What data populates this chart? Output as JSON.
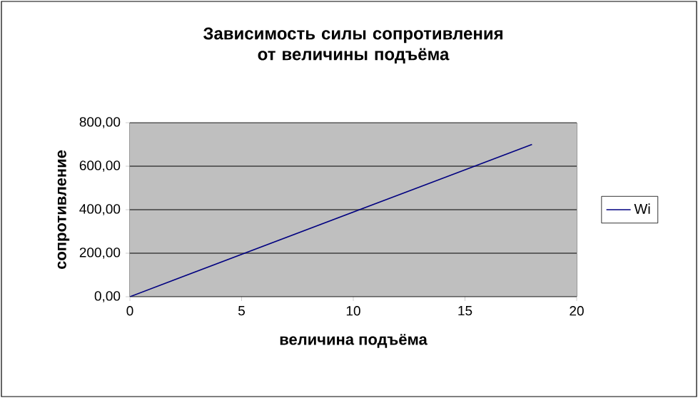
{
  "chart_data": {
    "type": "line",
    "title": "Зависимость силы сопротивления от величины подъёма",
    "xlabel": "величина подъёма",
    "ylabel": "сопротивление",
    "x": [
      0,
      18
    ],
    "series": [
      {
        "name": "Wi",
        "color": "#000080",
        "values": [
          0,
          700
        ]
      }
    ],
    "xlim": [
      0,
      20
    ],
    "xticks": [
      0,
      5,
      10,
      15,
      20
    ],
    "ylim": [
      0,
      800
    ],
    "yticks": [
      {
        "value": 0,
        "label": "0,00"
      },
      {
        "value": 200,
        "label": "200,00"
      },
      {
        "value": 400,
        "label": "400,00"
      },
      {
        "value": 600,
        "label": "600,00"
      },
      {
        "value": 800,
        "label": "800,00"
      }
    ],
    "grid": "y",
    "legend": "right",
    "marker": "none",
    "line_style": "solid"
  }
}
